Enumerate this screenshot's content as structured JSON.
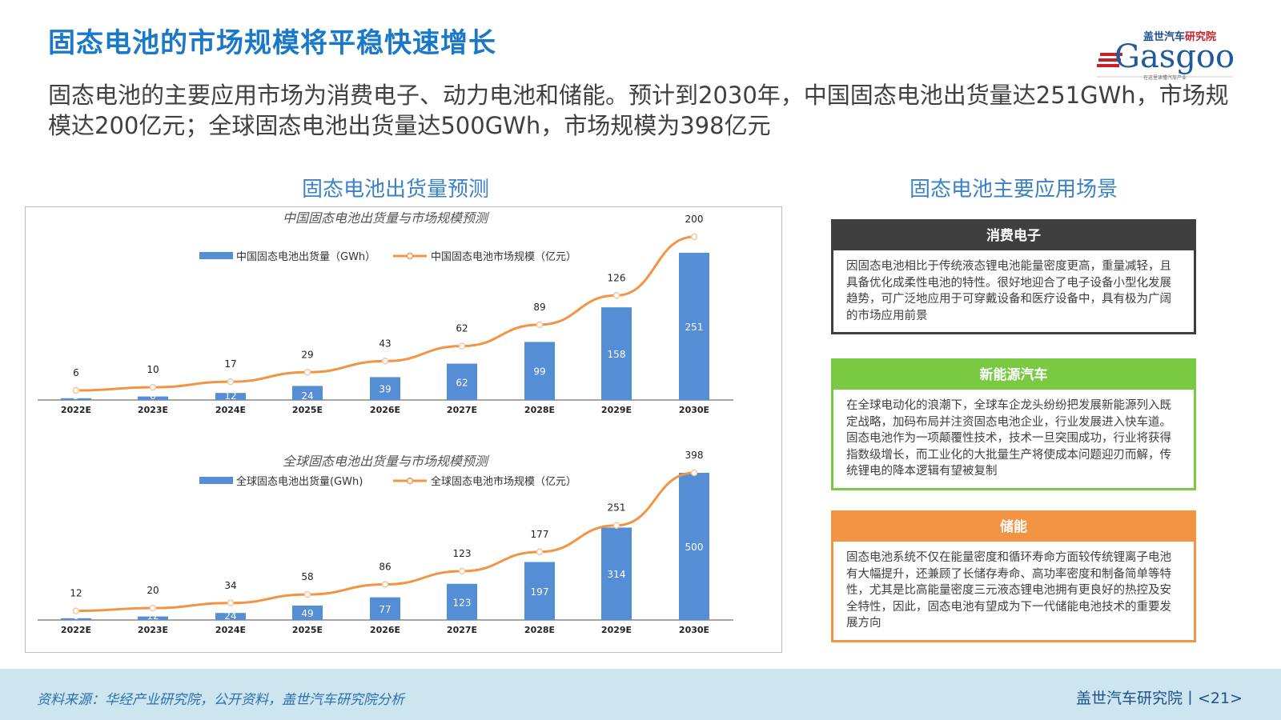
{
  "title": "固态电池的市场规模将平稳快速增长",
  "logo": {
    "cn": "盖世汽车研究院",
    "en": "Gasgoo",
    "slogan": "在这里读懂汽车产业"
  },
  "intro": "固态电池的主要应用市场为消费电子、动力电池和储能。预计到2030年，中国固态电池出货量达251GWh，市场规模达200亿元；全球固态电池出货量达500GWh，市场规模为398亿元",
  "left_section_title": "固态电池出货量预测",
  "right_section_title": "固态电池主要应用场景",
  "colors": {
    "bar": "#558ed5",
    "line": "#f39444",
    "title": "#1a78c8"
  },
  "chart_data": [
    {
      "type": "bar+line",
      "title": "中国固态电池出货量与市场规模预测",
      "categories": [
        "2022E",
        "2023E",
        "2024E",
        "2025E",
        "2026E",
        "2027E",
        "2028E",
        "2029E",
        "2030E"
      ],
      "series": [
        {
          "name": "中国固态电池出货量（GWh）",
          "type": "bar",
          "values": [
            3,
            6,
            12,
            24,
            39,
            62,
            99,
            158,
            251
          ]
        },
        {
          "name": "中国固态电池市场规模（亿元）",
          "type": "line",
          "values": [
            6,
            10,
            17,
            29,
            43,
            62,
            89,
            126,
            200
          ]
        }
      ],
      "legend": "top"
    },
    {
      "type": "bar+line",
      "title": "全球固态电池出货量与市场规模预测",
      "categories": [
        "2022E",
        "2023E",
        "2024E",
        "2025E",
        "2026E",
        "2027E",
        "2028E",
        "2029E",
        "2030E"
      ],
      "series": [
        {
          "name": "全球固态电池出货量(GWh)",
          "type": "bar",
          "values": [
            6,
            12,
            24,
            49,
            77,
            123,
            197,
            314,
            500
          ]
        },
        {
          "name": "全球固态电池市场规模（亿元）",
          "type": "line",
          "values": [
            12,
            20,
            34,
            58,
            86,
            123,
            177,
            251,
            398
          ]
        }
      ],
      "legend": "top"
    }
  ],
  "cards": [
    {
      "title": "消费电子",
      "text": "因固态电池相比于传统液态锂电池能量密度更高，重量减轻，且具备优化成柔性电池的特性。很好地迎合了电子设备小型化发展趋势，可广泛地应用于可穿戴设备和医疗设备中，具有极为广阔的市场应用前景"
    },
    {
      "title": "新能源汽车",
      "text": "在全球电动化的浪潮下，全球车企龙头纷纷把发展新能源列入既定战略，加码布局并注资固态电池企业，行业发展进入快车道。固态电池作为一项颠覆性技术，技术一旦突围成功，行业将获得指数级增长，而工业化的大批量生产将使成本问题迎刃而解，传统锂电的降本逻辑有望被复制"
    },
    {
      "title": "储能",
      "text": "固态电池系统不仅在能量密度和循环寿命方面较传统锂离子电池有大幅提升，还兼顾了长储存寿命、高功率密度和制备简单等特性，尤其是比高能量密度三元液态锂电池拥有更良好的热控及安全特性，因此，固态电池有望成为下一代储能电池技术的重要发展方向"
    }
  ],
  "footer": {
    "source": "资料来源：华经产业研究院，公开资料，盖世汽车研究院分析",
    "page": "盖世汽车研究院丨<21>"
  }
}
